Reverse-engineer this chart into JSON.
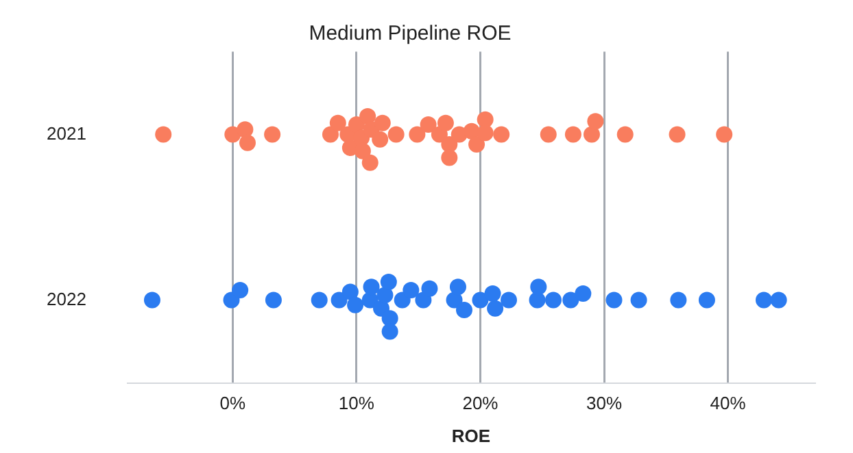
{
  "chart_data": {
    "type": "scatter",
    "title": "Medium Pipeline ROE",
    "xlabel": "ROE",
    "series": [
      {
        "color": "#f97d5e",
        "x": [
          -5.6,
          0,
          1.0,
          1.2,
          3.2,
          7.9,
          8.5,
          9.3,
          9.5,
          10.0,
          10.4,
          10.5,
          10.9,
          11.1,
          11.2,
          11.9,
          12.1,
          13.2,
          14.9,
          15.8,
          16.7,
          17.2,
          17.5,
          17.5,
          18.3,
          19.3,
          19.7,
          20.4,
          20.4,
          21.7,
          25.5,
          27.5,
          29.0,
          29.3,
          31.7,
          35.9,
          39.7
        ],
        "values": [
          2021,
          2021,
          2020.97,
          2021.05,
          2021,
          2021,
          2020.93,
          2021,
          2021.08,
          2020.94,
          2021.02,
          2021.1,
          2020.89,
          2021.17,
          2020.97,
          2021.03,
          2020.93,
          2021,
          2021,
          2020.94,
          2021,
          2020.93,
          2021.06,
          2021.14,
          2021,
          2020.98,
          2021.06,
          2020.91,
          2020.99,
          2021,
          2021,
          2021,
          2021,
          2020.92,
          2021,
          2021,
          2021
        ]
      },
      {
        "color": "#2b7bf0",
        "x": [
          -6.5,
          -0.1,
          0.6,
          3.3,
          7.0,
          8.6,
          9.5,
          9.9,
          11.1,
          11.2,
          12.0,
          12.3,
          12.6,
          12.7,
          12.7,
          13.7,
          14.4,
          15.4,
          15.9,
          17.9,
          18.2,
          18.7,
          20.0,
          21.0,
          21.2,
          22.3,
          24.6,
          24.7,
          25.9,
          27.3,
          28.3,
          30.8,
          32.8,
          36.0,
          38.3,
          42.9,
          44.1
        ],
        "values": [
          2022,
          2022,
          2021.94,
          2022,
          2022,
          2022,
          2021.95,
          2022.03,
          2022,
          2021.92,
          2022.05,
          2021.97,
          2021.89,
          2022.11,
          2022.19,
          2022,
          2021.94,
          2022,
          2021.93,
          2022,
          2021.92,
          2022.06,
          2022,
          2021.96,
          2022.05,
          2022,
          2022,
          2021.92,
          2022,
          2022,
          2021.96,
          2022,
          2022,
          2022,
          2022,
          2022,
          2022
        ]
      }
    ],
    "xlim": [
      -8.5,
      47
    ],
    "xticks": [
      {
        "value": 0,
        "label": "0%"
      },
      {
        "value": 10,
        "label": "10%"
      },
      {
        "value": 20,
        "label": "20%"
      },
      {
        "value": 30,
        "label": "30%"
      },
      {
        "value": 40,
        "label": "40%"
      }
    ],
    "ylim": [
      2022.5,
      2020.5
    ],
    "yticks": [
      2021,
      2022
    ],
    "grid": "x",
    "legend": false,
    "marker": "circle"
  }
}
